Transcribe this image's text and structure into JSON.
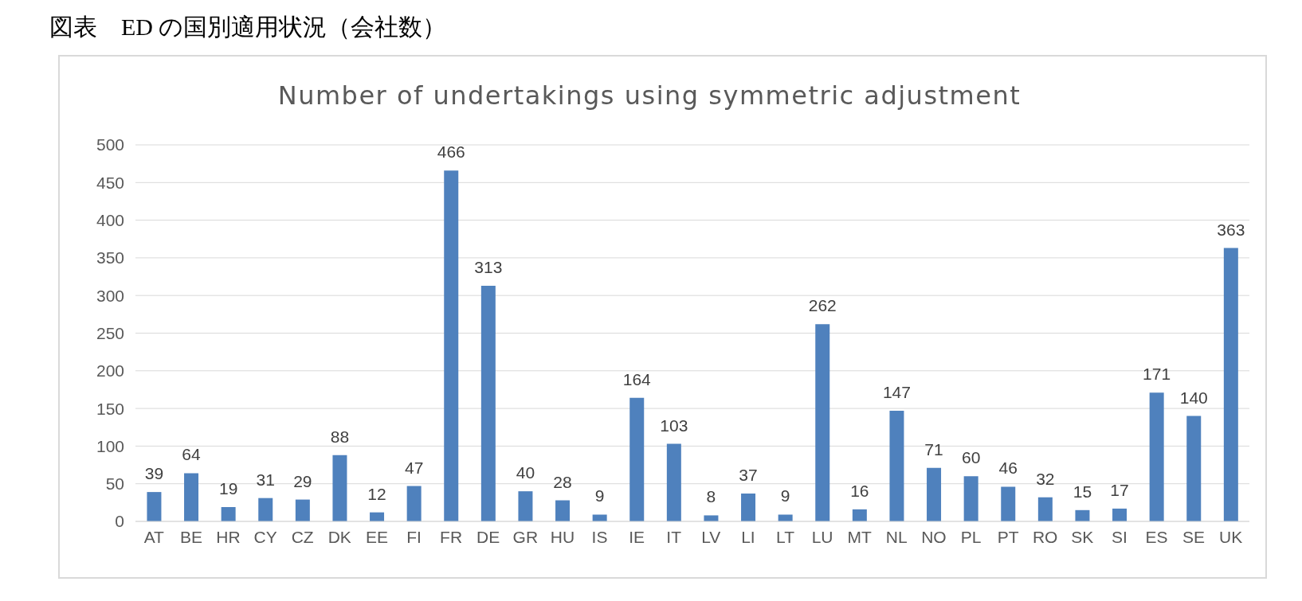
{
  "chart_data": {
    "type": "bar",
    "title": "図表　ED の国別適用状況（会社数）",
    "subtitle": "Number of undertakings using symmetric adjustment",
    "categories": [
      "AT",
      "BE",
      "HR",
      "CY",
      "CZ",
      "DK",
      "EE",
      "FI",
      "FR",
      "DE",
      "GR",
      "HU",
      "IS",
      "IE",
      "IT",
      "LV",
      "LI",
      "LT",
      "LU",
      "MT",
      "NL",
      "NO",
      "PL",
      "PT",
      "RO",
      "SK",
      "SI",
      "ES",
      "SE",
      "UK"
    ],
    "values": [
      39,
      64,
      19,
      31,
      29,
      88,
      12,
      47,
      466,
      313,
      40,
      28,
      9,
      164,
      103,
      8,
      37,
      9,
      262,
      16,
      147,
      71,
      60,
      46,
      32,
      15,
      17,
      171,
      140,
      363
    ],
    "color": "#4f81bd",
    "ylim": [
      0,
      500
    ],
    "yticks": [
      0,
      50,
      100,
      150,
      200,
      250,
      300,
      350,
      400,
      450,
      500
    ],
    "grid": "y",
    "data_labels": true
  }
}
